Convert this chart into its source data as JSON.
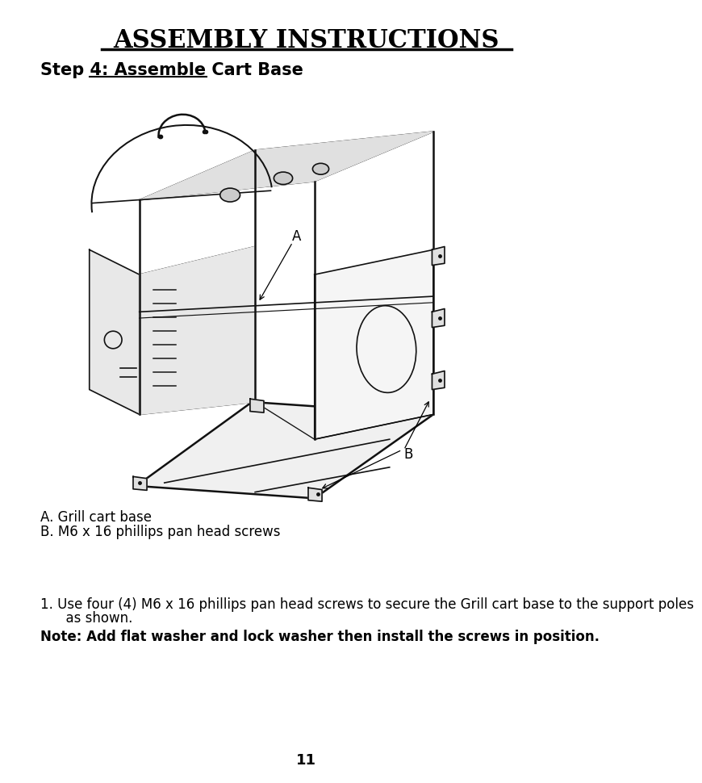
{
  "bg_color": "#ffffff",
  "title": "ASSEMBLY INSTRUCTIONS",
  "step_title": "Step 4: Assemble Cart Base",
  "legend_lines": [
    "A. Grill cart base",
    "B. M6 x 16 phillips pan head screws"
  ],
  "instruction_line1": "1. Use four (4) M6 x 16 phillips pan head screws to secure the Grill cart base to the support poles",
  "instruction_line2": "      as shown.",
  "note_line": "Note: Add flat washer and lock washer then install the screws in position.",
  "page_number": "11",
  "title_fontsize": 22,
  "step_fontsize": 15,
  "body_fontsize": 12,
  "note_fontsize": 12,
  "page_fontsize": 13
}
